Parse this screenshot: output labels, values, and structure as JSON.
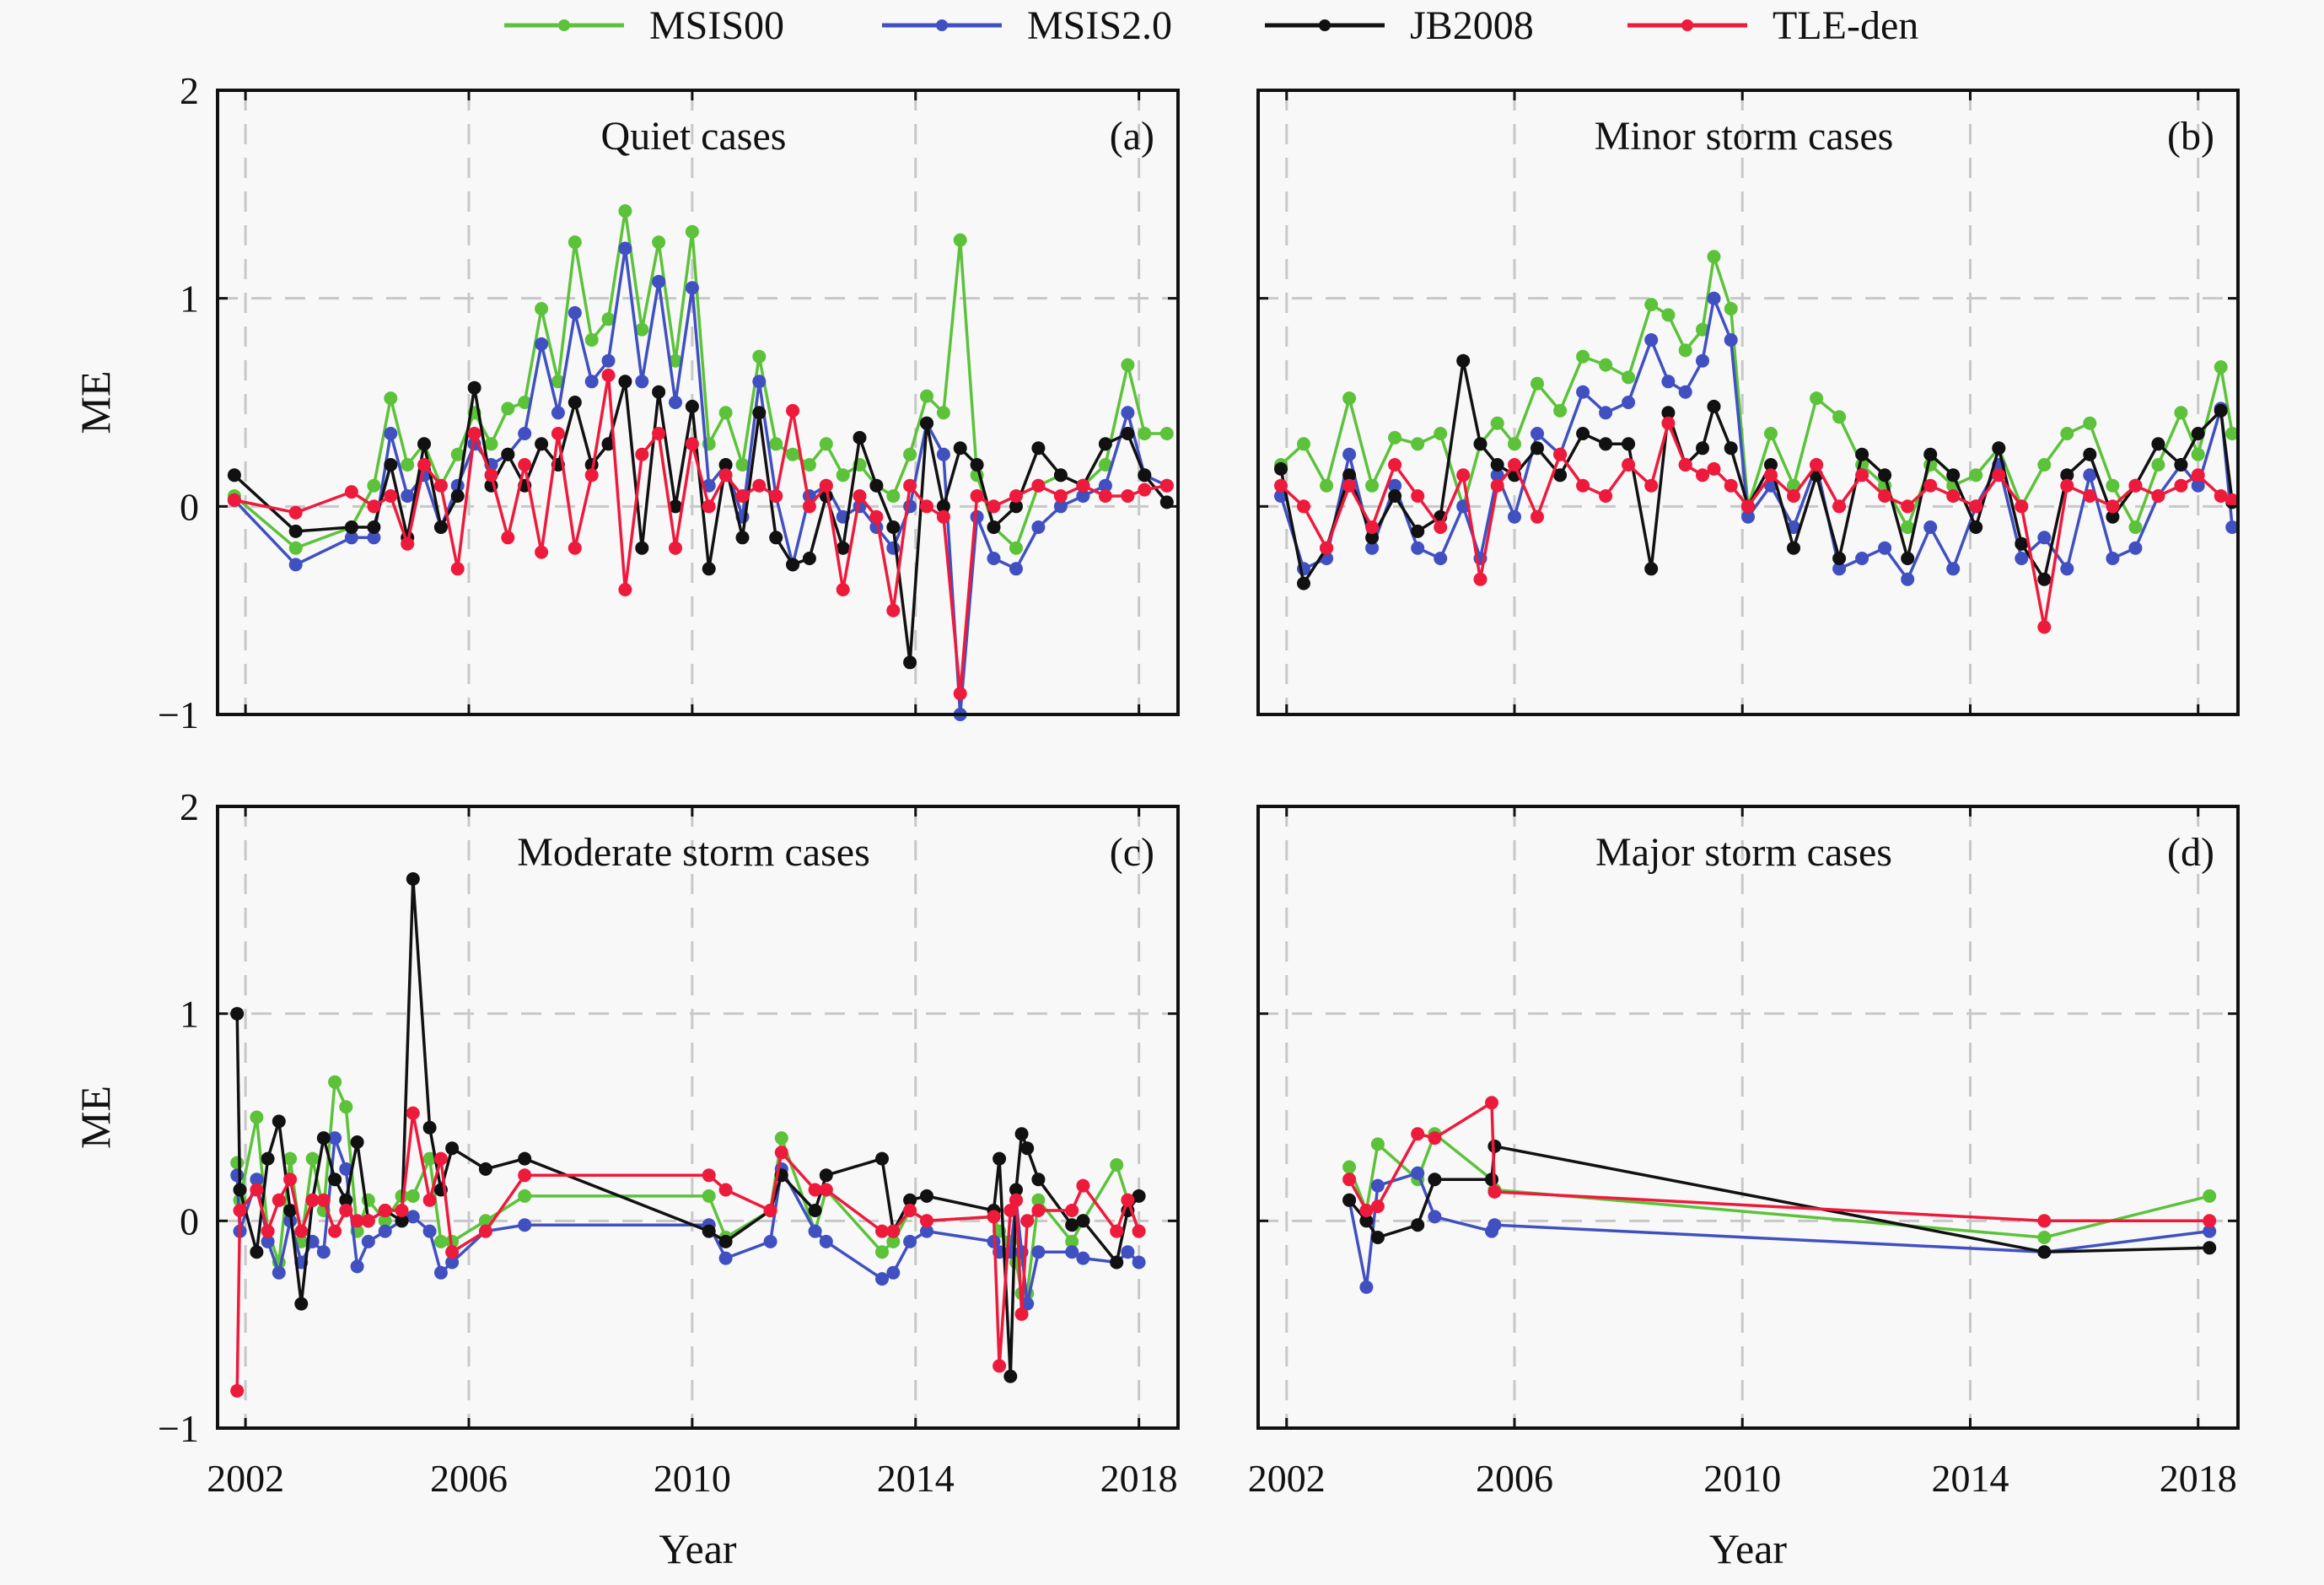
{
  "legend": [
    {
      "name": "MSIS00",
      "color": "#5cc23a"
    },
    {
      "name": "MSIS2.0",
      "color": "#4050c0"
    },
    {
      "name": "JB2008",
      "color": "#111111"
    },
    {
      "name": "TLE-den",
      "color": "#ee1a3c"
    }
  ],
  "chart_data": [
    {
      "type": "line",
      "panel": "(a)",
      "title": "Quiet cases",
      "xlabel": "",
      "ylabel": "ME",
      "xlim": [
        2001.5,
        2018.7
      ],
      "ylim": [
        -1,
        2
      ],
      "xticks": [
        2002,
        2006,
        2010,
        2014,
        2018
      ],
      "yticks": [
        -1,
        0,
        1,
        2
      ],
      "ytick_labels": [
        "−1",
        "0",
        "1",
        "2"
      ],
      "grid": true,
      "x": [
        2001.8,
        2002.9,
        2003.9,
        2004.3,
        2004.6,
        2004.9,
        2005.2,
        2005.5,
        2005.8,
        2006.1,
        2006.4,
        2006.7,
        2007.0,
        2007.3,
        2007.6,
        2007.9,
        2008.2,
        2008.5,
        2008.8,
        2009.1,
        2009.4,
        2009.7,
        2010.0,
        2010.3,
        2010.6,
        2010.9,
        2011.2,
        2011.5,
        2011.8,
        2012.1,
        2012.4,
        2012.7,
        2013.0,
        2013.3,
        2013.6,
        2013.9,
        2014.2,
        2014.5,
        2014.8,
        2015.1,
        2015.4,
        2015.8,
        2016.2,
        2016.6,
        2017.0,
        2017.4,
        2017.8,
        2018.1,
        2018.5
      ],
      "series": [
        {
          "name": "MSIS00",
          "values": [
            0.05,
            -0.2,
            -0.1,
            0.1,
            0.52,
            0.2,
            0.3,
            0.1,
            0.25,
            0.45,
            0.3,
            0.47,
            0.5,
            0.95,
            0.6,
            1.27,
            0.8,
            0.9,
            1.42,
            0.85,
            1.27,
            0.7,
            1.32,
            0.3,
            0.45,
            0.2,
            0.72,
            0.3,
            0.25,
            0.2,
            0.3,
            0.15,
            0.2,
            0.1,
            0.05,
            0.25,
            0.53,
            0.45,
            1.28,
            0.15,
            -0.1,
            -0.2,
            0.1,
            0.15,
            0.1,
            0.2,
            0.68,
            0.35,
            0.35
          ]
        },
        {
          "name": "MSIS2.0",
          "values": [
            0.03,
            -0.28,
            -0.15,
            -0.15,
            0.35,
            0.05,
            0.15,
            -0.1,
            0.1,
            0.3,
            0.2,
            0.25,
            0.35,
            0.78,
            0.45,
            0.93,
            0.6,
            0.7,
            1.24,
            0.6,
            1.08,
            0.5,
            1.05,
            0.1,
            0.2,
            -0.05,
            0.6,
            0.05,
            -0.28,
            0.05,
            0.1,
            -0.05,
            0.0,
            -0.1,
            -0.2,
            0.0,
            0.4,
            0.25,
            -1.0,
            -0.05,
            -0.25,
            -0.3,
            -0.1,
            0.0,
            0.05,
            0.1,
            0.45,
            0.15,
            0.1
          ]
        },
        {
          "name": "JB2008",
          "values": [
            0.15,
            -0.12,
            -0.1,
            -0.1,
            0.2,
            -0.15,
            0.3,
            -0.1,
            0.05,
            0.57,
            0.1,
            0.25,
            0.1,
            0.3,
            0.2,
            0.5,
            0.2,
            0.3,
            0.6,
            -0.2,
            0.55,
            0.0,
            0.48,
            -0.3,
            0.2,
            -0.15,
            0.45,
            -0.15,
            -0.28,
            -0.25,
            0.05,
            -0.2,
            0.33,
            0.1,
            -0.1,
            -0.75,
            0.4,
            0.0,
            0.28,
            0.2,
            -0.1,
            0.0,
            0.28,
            0.15,
            0.1,
            0.3,
            0.35,
            0.15,
            0.02
          ]
        },
        {
          "name": "TLE-den",
          "values": [
            0.03,
            -0.03,
            0.07,
            0.0,
            0.05,
            -0.18,
            0.2,
            0.1,
            -0.3,
            0.35,
            0.15,
            -0.15,
            0.2,
            -0.22,
            0.35,
            -0.2,
            0.15,
            0.63,
            -0.4,
            0.25,
            0.35,
            -0.2,
            0.3,
            0.0,
            0.15,
            0.05,
            0.1,
            0.05,
            0.46,
            0.0,
            0.1,
            -0.4,
            0.05,
            -0.05,
            -0.5,
            0.1,
            0.0,
            -0.05,
            -0.9,
            0.05,
            0.0,
            0.05,
            0.1,
            0.05,
            0.1,
            0.05,
            0.05,
            0.08,
            0.1
          ]
        }
      ]
    },
    {
      "type": "line",
      "panel": "(b)",
      "title": "Minor storm cases",
      "xlabel": "",
      "ylabel": "",
      "xlim": [
        2001.5,
        2018.7
      ],
      "ylim": [
        -1,
        2
      ],
      "xticks": [
        2002,
        2006,
        2010,
        2014,
        2018
      ],
      "yticks": [
        -1,
        0,
        1,
        2
      ],
      "grid": true,
      "x": [
        2001.9,
        2002.3,
        2002.7,
        2003.1,
        2003.5,
        2003.9,
        2004.3,
        2004.7,
        2005.1,
        2005.4,
        2005.7,
        2006.0,
        2006.4,
        2006.8,
        2007.2,
        2007.6,
        2008.0,
        2008.4,
        2008.7,
        2009.0,
        2009.3,
        2009.5,
        2009.8,
        2010.1,
        2010.5,
        2010.9,
        2011.3,
        2011.7,
        2012.1,
        2012.5,
        2012.9,
        2013.3,
        2013.7,
        2014.1,
        2014.5,
        2014.9,
        2015.3,
        2015.7,
        2016.1,
        2016.5,
        2016.9,
        2017.3,
        2017.7,
        2018.0,
        2018.4,
        2018.6
      ],
      "series": [
        {
          "name": "MSIS00",
          "values": [
            0.2,
            0.3,
            0.1,
            0.52,
            0.1,
            0.33,
            0.3,
            0.35,
            0.0,
            0.3,
            0.4,
            0.3,
            0.59,
            0.46,
            0.72,
            0.68,
            0.62,
            0.97,
            0.92,
            0.75,
            0.85,
            1.2,
            0.95,
            0.0,
            0.35,
            0.1,
            0.52,
            0.43,
            0.2,
            0.1,
            -0.1,
            0.2,
            0.1,
            0.15,
            0.28,
            0.0,
            0.2,
            0.35,
            0.4,
            0.1,
            -0.1,
            0.2,
            0.45,
            0.25,
            0.67,
            0.35
          ]
        },
        {
          "name": "MSIS2.0",
          "values": [
            0.05,
            -0.3,
            -0.25,
            0.25,
            -0.2,
            0.1,
            -0.2,
            -0.25,
            0.0,
            -0.25,
            0.15,
            -0.05,
            0.35,
            0.25,
            0.55,
            0.45,
            0.5,
            0.8,
            0.6,
            0.55,
            0.7,
            1.0,
            0.8,
            -0.05,
            0.1,
            -0.1,
            0.2,
            -0.3,
            -0.25,
            -0.2,
            -0.35,
            -0.1,
            -0.3,
            0.0,
            0.2,
            -0.25,
            -0.15,
            -0.3,
            0.15,
            -0.25,
            -0.2,
            0.05,
            0.2,
            0.1,
            0.47,
            -0.1
          ]
        },
        {
          "name": "JB2008",
          "values": [
            0.18,
            -0.37,
            -0.2,
            0.15,
            -0.15,
            0.05,
            -0.12,
            -0.05,
            0.7,
            0.3,
            0.2,
            0.15,
            0.28,
            0.15,
            0.35,
            0.3,
            0.3,
            -0.3,
            0.45,
            0.2,
            0.28,
            0.48,
            0.28,
            0.0,
            0.2,
            -0.2,
            0.15,
            -0.25,
            0.25,
            0.15,
            -0.25,
            0.25,
            0.15,
            -0.1,
            0.28,
            -0.18,
            -0.35,
            0.15,
            0.25,
            -0.05,
            0.1,
            0.3,
            0.2,
            0.35,
            0.46,
            0.02
          ]
        },
        {
          "name": "TLE-den",
          "values": [
            0.1,
            0.0,
            -0.2,
            0.1,
            -0.1,
            0.2,
            0.05,
            -0.1,
            0.15,
            -0.35,
            0.1,
            0.2,
            -0.05,
            0.25,
            0.1,
            0.05,
            0.2,
            0.1,
            0.4,
            0.2,
            0.15,
            0.18,
            0.1,
            0.0,
            0.15,
            0.05,
            0.2,
            0.0,
            0.15,
            0.05,
            0.0,
            0.1,
            0.05,
            0.0,
            0.15,
            0.0,
            -0.58,
            0.1,
            0.05,
            0.0,
            0.1,
            0.05,
            0.1,
            0.15,
            0.05,
            0.03
          ]
        }
      ]
    },
    {
      "type": "line",
      "panel": "(c)",
      "title": "Moderate storm cases",
      "xlabel": "Year",
      "ylabel": "ME",
      "xlim": [
        2001.5,
        2018.7
      ],
      "ylim": [
        -1,
        2
      ],
      "xticks": [
        2002,
        2006,
        2010,
        2014,
        2018
      ],
      "xtick_labels": [
        "2002",
        "2006",
        "2010",
        "2014",
        "2018"
      ],
      "yticks": [
        -1,
        0,
        1,
        2
      ],
      "ytick_labels": [
        "−1",
        "0",
        "1",
        "2"
      ],
      "grid": true,
      "x": [
        2001.85,
        2001.9,
        2002.2,
        2002.4,
        2002.6,
        2002.8,
        2003.0,
        2003.2,
        2003.4,
        2003.6,
        2003.8,
        2004.0,
        2004.2,
        2004.5,
        2004.8,
        2005.0,
        2005.3,
        2005.5,
        2005.7,
        2006.3,
        2007.0,
        2010.3,
        2010.6,
        2011.4,
        2011.6,
        2012.2,
        2012.4,
        2013.4,
        2013.6,
        2013.9,
        2014.2,
        2015.4,
        2015.5,
        2015.7,
        2015.8,
        2015.9,
        2016.0,
        2016.2,
        2016.8,
        2017.0,
        2017.6,
        2017.8,
        2018.0
      ],
      "series": [
        {
          "name": "MSIS00",
          "values": [
            0.28,
            0.1,
            0.5,
            -0.05,
            -0.2,
            0.3,
            -0.1,
            0.3,
            0.05,
            0.67,
            0.55,
            -0.05,
            0.1,
            0.0,
            0.12,
            0.12,
            0.3,
            -0.1,
            -0.1,
            0.0,
            0.12,
            0.12,
            -0.08,
            0.05,
            0.4,
            -0.05,
            0.15,
            -0.15,
            -0.1,
            0.05,
            0.0,
            0.02,
            -0.05,
            -0.1,
            -0.2,
            -0.35,
            -0.35,
            0.1,
            -0.1,
            0.0,
            0.27,
            0.1,
            -0.05
          ]
        },
        {
          "name": "MSIS2.0",
          "values": [
            0.22,
            -0.05,
            0.2,
            -0.1,
            -0.25,
            0.0,
            -0.2,
            -0.1,
            -0.15,
            0.4,
            0.25,
            -0.22,
            -0.1,
            -0.05,
            0.0,
            0.02,
            -0.05,
            -0.25,
            -0.2,
            -0.05,
            -0.02,
            -0.02,
            -0.18,
            -0.1,
            0.25,
            -0.05,
            -0.1,
            -0.28,
            -0.25,
            -0.1,
            -0.05,
            -0.1,
            -0.15,
            -0.15,
            0.1,
            -0.15,
            -0.4,
            -0.15,
            -0.15,
            -0.18,
            -0.2,
            -0.15,
            -0.2
          ]
        },
        {
          "name": "JB2008",
          "values": [
            1.0,
            0.15,
            -0.15,
            0.3,
            0.48,
            0.05,
            -0.4,
            0.1,
            0.4,
            0.2,
            0.1,
            0.38,
            0.0,
            0.05,
            0.0,
            1.65,
            0.45,
            0.15,
            0.35,
            0.25,
            0.3,
            -0.05,
            -0.1,
            0.05,
            0.22,
            0.05,
            0.22,
            0.3,
            -0.05,
            0.1,
            0.12,
            0.05,
            0.3,
            -0.75,
            0.15,
            0.42,
            0.35,
            0.2,
            -0.02,
            0.0,
            -0.2,
            0.05,
            0.12
          ]
        },
        {
          "name": "TLE-den",
          "values": [
            -0.82,
            0.05,
            0.15,
            -0.05,
            0.1,
            0.2,
            -0.05,
            0.1,
            0.1,
            -0.05,
            0.05,
            0.0,
            0.0,
            0.05,
            0.05,
            0.52,
            0.1,
            0.3,
            -0.15,
            -0.05,
            0.22,
            0.22,
            0.15,
            0.05,
            0.33,
            0.15,
            0.15,
            -0.05,
            -0.05,
            0.05,
            0.0,
            0.02,
            -0.7,
            0.05,
            0.1,
            -0.45,
            0.0,
            0.05,
            0.05,
            0.17,
            -0.05,
            0.1,
            -0.05
          ]
        }
      ]
    },
    {
      "type": "line",
      "panel": "(d)",
      "title": "Major storm cases",
      "xlabel": "Year",
      "ylabel": "",
      "xlim": [
        2001.5,
        2018.7
      ],
      "ylim": [
        -1,
        2
      ],
      "xticks": [
        2002,
        2006,
        2010,
        2014,
        2018
      ],
      "xtick_labels": [
        "2002",
        "2006",
        "2010",
        "2014",
        "2018"
      ],
      "yticks": [
        -1,
        0,
        1,
        2
      ],
      "grid": true,
      "x": [
        2003.1,
        2003.4,
        2003.6,
        2004.3,
        2004.6,
        2005.6,
        2005.65,
        2015.3,
        2018.2
      ],
      "series": [
        {
          "name": "MSIS00",
          "values": [
            0.26,
            0.05,
            0.37,
            0.2,
            0.42,
            0.2,
            0.15,
            -0.08,
            0.12
          ]
        },
        {
          "name": "MSIS2.0",
          "values": [
            0.1,
            -0.32,
            0.17,
            0.23,
            0.02,
            -0.05,
            -0.02,
            -0.15,
            -0.05
          ]
        },
        {
          "name": "JB2008",
          "values": [
            0.1,
            0.0,
            -0.08,
            -0.02,
            0.2,
            0.2,
            0.36,
            -0.15,
            -0.13
          ]
        },
        {
          "name": "TLE-den",
          "values": [
            0.2,
            0.05,
            0.07,
            0.42,
            0.4,
            0.57,
            0.14,
            0.0,
            0.0
          ]
        }
      ]
    }
  ]
}
